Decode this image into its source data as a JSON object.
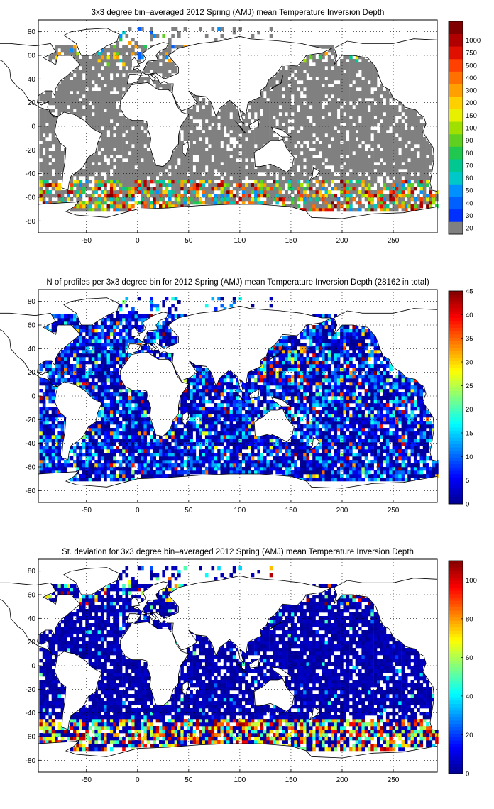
{
  "palette": {
    "jet": [
      "#00008f",
      "#0000ff",
      "#0080ff",
      "#00ffff",
      "#80ff80",
      "#ffff00",
      "#ff8000",
      "#ff0000",
      "#800000"
    ],
    "missing": "#808080",
    "coast": "#000000"
  },
  "chart_data": [
    {
      "type": "heatmap",
      "title": "3x3 degree bin–averaged 2012 Spring (AMJ) mean Temperature Inversion Depth",
      "xlabel": "",
      "ylabel": "",
      "xlim": [
        -97,
        293
      ],
      "ylim": [
        -90,
        90
      ],
      "xticks": [
        -50,
        0,
        50,
        100,
        150,
        200,
        250
      ],
      "yticks": [
        80,
        60,
        40,
        20,
        0,
        -20,
        -40,
        -60,
        -80
      ],
      "grid": true,
      "colorbar": {
        "kind": "discrete",
        "labels": [
          "20",
          "30",
          "40",
          "50",
          "60",
          "70",
          "80",
          "90",
          "100",
          "150",
          "200",
          "300",
          "400",
          "500",
          "750",
          "1000"
        ],
        "colors": [
          "#808080",
          "#0030ff",
          "#0060ff",
          "#0090ff",
          "#00c8c8",
          "#00c890",
          "#20c850",
          "#60d020",
          "#a0e000",
          "#e8f000",
          "#ffd000",
          "#ffa000",
          "#ff7000",
          "#ff4000",
          "#e01000",
          "#b00000",
          "#800000"
        ]
      },
      "bin_deg": 3,
      "approx_rows": [
        [
          75,
          -40,
          10,
          1
        ],
        [
          72,
          -60,
          10,
          1
        ],
        [
          70,
          -65,
          10,
          2
        ],
        [
          67,
          -70,
          10,
          3
        ],
        [
          64,
          -70,
          10,
          3
        ],
        [
          61,
          -65,
          10,
          3
        ],
        [
          58,
          -60,
          15,
          4
        ],
        [
          55,
          -55,
          20,
          5
        ],
        [
          52,
          -55,
          20,
          2
        ],
        [
          49,
          -50,
          20,
          1
        ],
        [
          46,
          -55,
          15,
          1
        ],
        [
          40,
          -80,
          35,
          0
        ],
        [
          35,
          -80,
          35,
          0
        ],
        [
          30,
          -80,
          20,
          0
        ],
        [
          25,
          -90,
          35,
          0
        ],
        [
          20,
          -95,
          40,
          0
        ],
        [
          15,
          -95,
          45,
          0
        ],
        [
          10,
          -95,
          70,
          0
        ],
        [
          5,
          -95,
          80,
          0
        ],
        [
          0,
          -95,
          105,
          0
        ],
        [
          -5,
          -95,
          140,
          0
        ],
        [
          -10,
          -95,
          180,
          0
        ],
        [
          -20,
          -95,
          200,
          0
        ],
        [
          -30,
          -95,
          240,
          0
        ],
        [
          -40,
          -95,
          290,
          2
        ],
        [
          -45,
          -95,
          290,
          3
        ],
        [
          -50,
          -95,
          290,
          5
        ],
        [
          -55,
          -95,
          290,
          7
        ],
        [
          -60,
          -95,
          290,
          8
        ],
        [
          -63,
          -95,
          290,
          8
        ],
        [
          -66,
          -70,
          200,
          8
        ]
      ]
    },
    {
      "type": "heatmap",
      "title": "N of profiles per 3x3 degree bin for 2012 Spring (AMJ) mean Temperature Inversion Depth  (28162 in total)",
      "xlabel": "",
      "ylabel": "",
      "xlim": [
        -97,
        293
      ],
      "ylim": [
        -90,
        90
      ],
      "xticks": [
        -50,
        0,
        50,
        100,
        150,
        200,
        250
      ],
      "yticks": [
        80,
        60,
        40,
        20,
        0,
        -20,
        -40,
        -60,
        -80
      ],
      "grid": true,
      "colorbar": {
        "kind": "continuous",
        "min": 0,
        "max": 45,
        "ticks": [
          0,
          5,
          10,
          15,
          20,
          25,
          30,
          35,
          40,
          45
        ]
      },
      "total_profiles": 28162
    },
    {
      "type": "heatmap",
      "title": "St. deviation for 3x3 degree bin–averaged 2012 Spring (AMJ) mean Temperature Inversion Depth",
      "xlabel": "",
      "ylabel": "",
      "xlim": [
        -97,
        293
      ],
      "ylim": [
        -90,
        90
      ],
      "xticks": [
        -50,
        0,
        50,
        100,
        150,
        200,
        250
      ],
      "yticks": [
        80,
        60,
        40,
        20,
        0,
        -20,
        -40,
        -60,
        -80
      ],
      "grid": true,
      "colorbar": {
        "kind": "continuous",
        "min": 0,
        "max": 110,
        "ticks": [
          0,
          20,
          40,
          60,
          80,
          100
        ]
      }
    }
  ]
}
